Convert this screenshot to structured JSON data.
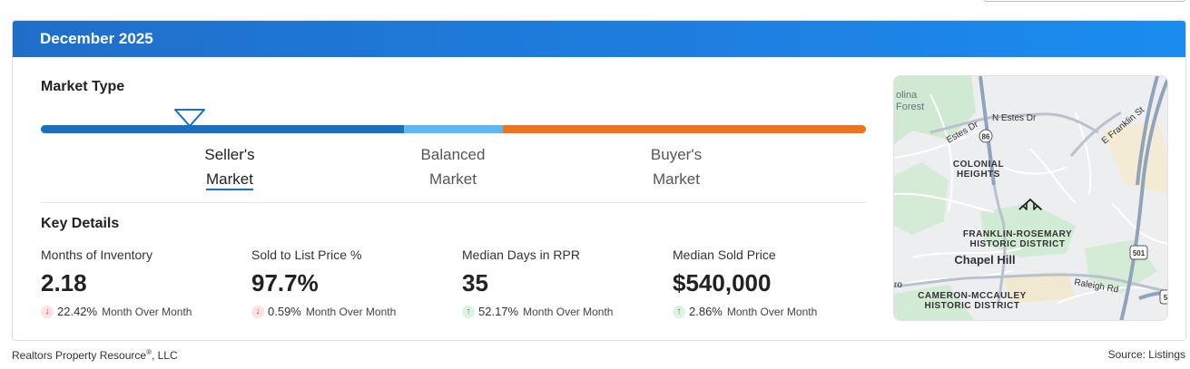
{
  "header": {
    "title": "December 2025"
  },
  "market_type": {
    "title": "Market Type",
    "selected": "seller",
    "labels": {
      "seller": [
        "Seller's",
        "Market"
      ],
      "balanced": [
        "Balanced",
        "Market"
      ],
      "buyer": [
        "Buyer's",
        "Market"
      ]
    },
    "colors": {
      "seller": "#1b6fbf",
      "balanced": "#5cb7f2",
      "buyer": "#ee7420"
    }
  },
  "key_details": {
    "title": "Key Details",
    "metrics": [
      {
        "label": "Months of Inventory",
        "value": "2.18",
        "change": "22.42%",
        "direction": "down",
        "period": "Month Over Month"
      },
      {
        "label": "Sold to List Price %",
        "value": "97.7%",
        "change": "0.59%",
        "direction": "down",
        "period": "Month Over Month"
      },
      {
        "label": "Median Days in RPR",
        "value": "35",
        "change": "52.17%",
        "direction": "up",
        "period": "Month Over Month"
      },
      {
        "label": "Median Sold Price",
        "value": "$540,000",
        "change": "2.86%",
        "direction": "up",
        "period": "Month Over Month"
      }
    ]
  },
  "map": {
    "labels": {
      "olina": "olina",
      "forest": "Forest",
      "estes_dr": "Estes Dr",
      "n_estes_dr": "N Estes Dr",
      "e_franklin_st": "E Franklin St",
      "route_86": "86",
      "colonial_1": "COLONIAL",
      "colonial_2": "HEIGHTS",
      "franklin_1": "FRANKLIN-ROSEMARY",
      "franklin_2": "HISTORIC DISTRICT",
      "chapel_hill": "Chapel Hill",
      "route_501": "501",
      "raleigh_rd": "Raleigh Rd",
      "ro": "ro",
      "cameron_1": "CAMERON-MCCAULEY",
      "cameron_2": "HISTORIC DISTRICT",
      "route_5": "5"
    }
  },
  "footer": {
    "company": "Realtors Property Resource",
    "registered": "®",
    "company_suffix": ", LLC",
    "source": "Source: Listings"
  }
}
